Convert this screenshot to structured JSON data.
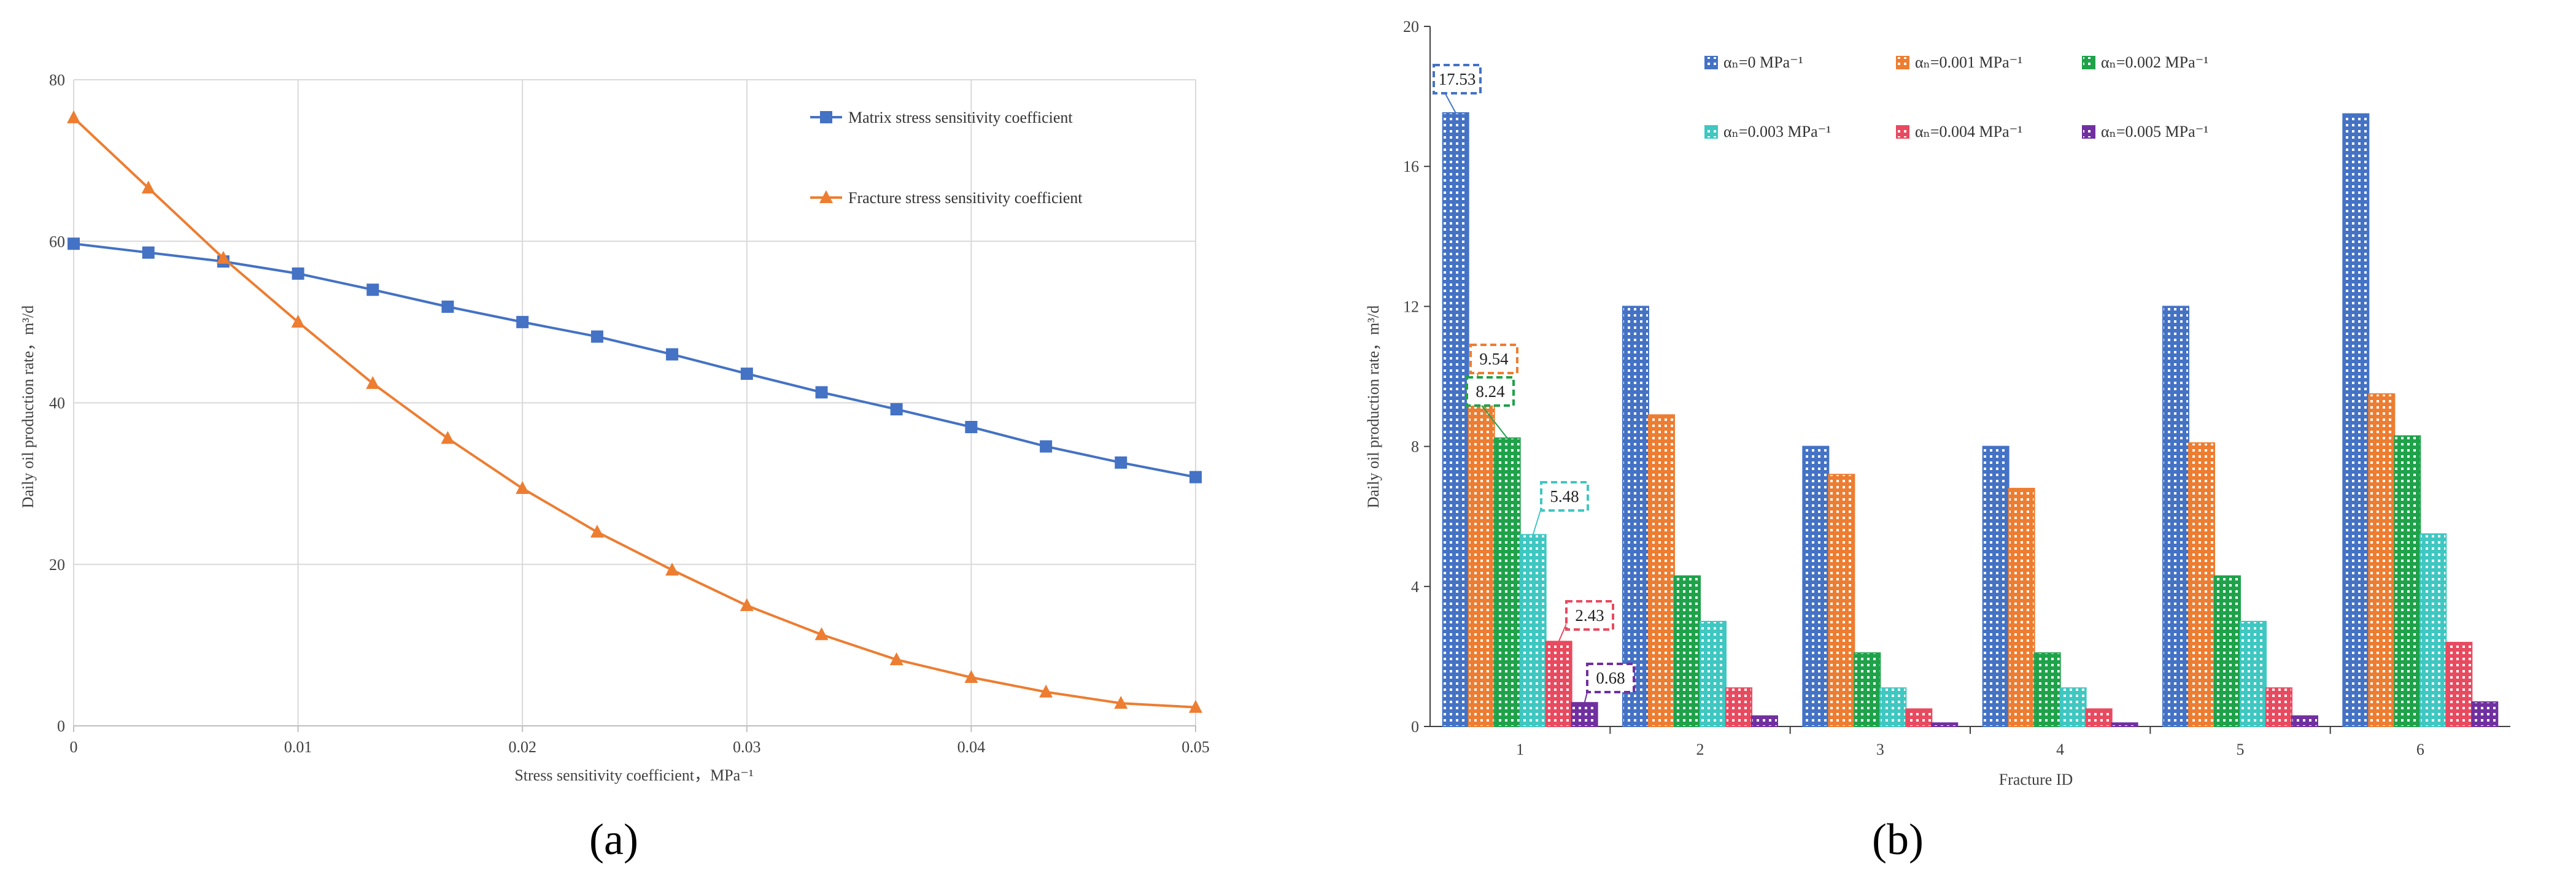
{
  "figure": {
    "panel_a_label": "(a)",
    "panel_b_label": "(b)"
  },
  "chart_data": [
    {
      "type": "line",
      "panel": "(a)",
      "title": "",
      "xlabel": "Stress sensitivity coefficient，MPa⁻¹",
      "ylabel": "Daily oil production rate，m³/d",
      "xlim": [
        0,
        0.05
      ],
      "ylim": [
        0,
        80
      ],
      "xticks": [
        "0",
        "0.01",
        "0.02",
        "0.03",
        "0.04",
        "0.05"
      ],
      "yticks": [
        "0",
        "20",
        "40",
        "60",
        "80"
      ],
      "grid": true,
      "legend_position": "top-right",
      "x": [
        0,
        0.00333,
        0.00667,
        0.01,
        0.01333,
        0.01667,
        0.02,
        0.02333,
        0.02667,
        0.03,
        0.03333,
        0.03667,
        0.04,
        0.04333,
        0.04667,
        0.05
      ],
      "series": [
        {
          "name": "Matrix stress sensitivity coefficient",
          "color": "#4472C4",
          "marker": "square",
          "values": [
            59.7,
            58.6,
            57.5,
            56.0,
            54.0,
            51.9,
            50.0,
            48.2,
            46.0,
            43.6,
            41.3,
            39.2,
            37.0,
            34.6,
            32.6,
            30.8
          ]
        },
        {
          "name": "Fracture stress sensitivity coefficient",
          "color": "#ED7D31",
          "marker": "triangle",
          "values": [
            75.3,
            66.6,
            57.9,
            50.0,
            42.4,
            35.6,
            29.4,
            24.0,
            19.3,
            14.9,
            11.3,
            8.2,
            6.0,
            4.2,
            2.8,
            2.3
          ]
        }
      ]
    },
    {
      "type": "bar",
      "panel": "(b)",
      "title": "",
      "xlabel": "Fracture ID",
      "ylabel": "Daily oil production rate，m³/d",
      "ylim": [
        0,
        20
      ],
      "yticks": [
        "0",
        "4",
        "8",
        "12",
        "16",
        "20"
      ],
      "categories": [
        "1",
        "2",
        "3",
        "4",
        "5",
        "6"
      ],
      "legend_position": "top",
      "series": [
        {
          "name": "αₙ=0 MPa⁻¹",
          "color": "#4472C4",
          "values": [
            17.53,
            12.0,
            8.0,
            8.0,
            12.0,
            17.5
          ]
        },
        {
          "name": "αₙ=0.001 MPa⁻¹",
          "color": "#ED7D31",
          "values": [
            9.54,
            8.9,
            7.2,
            6.8,
            8.1,
            9.5
          ]
        },
        {
          "name": "αₙ=0.002 MPa⁻¹",
          "color": "#1FA24A",
          "values": [
            8.24,
            4.3,
            2.1,
            2.1,
            4.3,
            8.3
          ]
        },
        {
          "name": "αₙ=0.003 MPa⁻¹",
          "color": "#3FC7C1",
          "values": [
            5.48,
            3.0,
            1.1,
            1.1,
            3.0,
            5.5
          ]
        },
        {
          "name": "αₙ=0.004 MPa⁻¹",
          "color": "#E84A5F",
          "values": [
            2.43,
            1.1,
            0.5,
            0.5,
            1.1,
            2.4
          ]
        },
        {
          "name": "αₙ=0.005 MPa⁻¹",
          "color": "#7030A0",
          "values": [
            0.68,
            0.3,
            0.1,
            0.1,
            0.3,
            0.7
          ]
        }
      ],
      "annotations": [
        "17.53",
        "9.54",
        "8.24",
        "5.48",
        "2.43",
        "0.68"
      ]
    }
  ]
}
